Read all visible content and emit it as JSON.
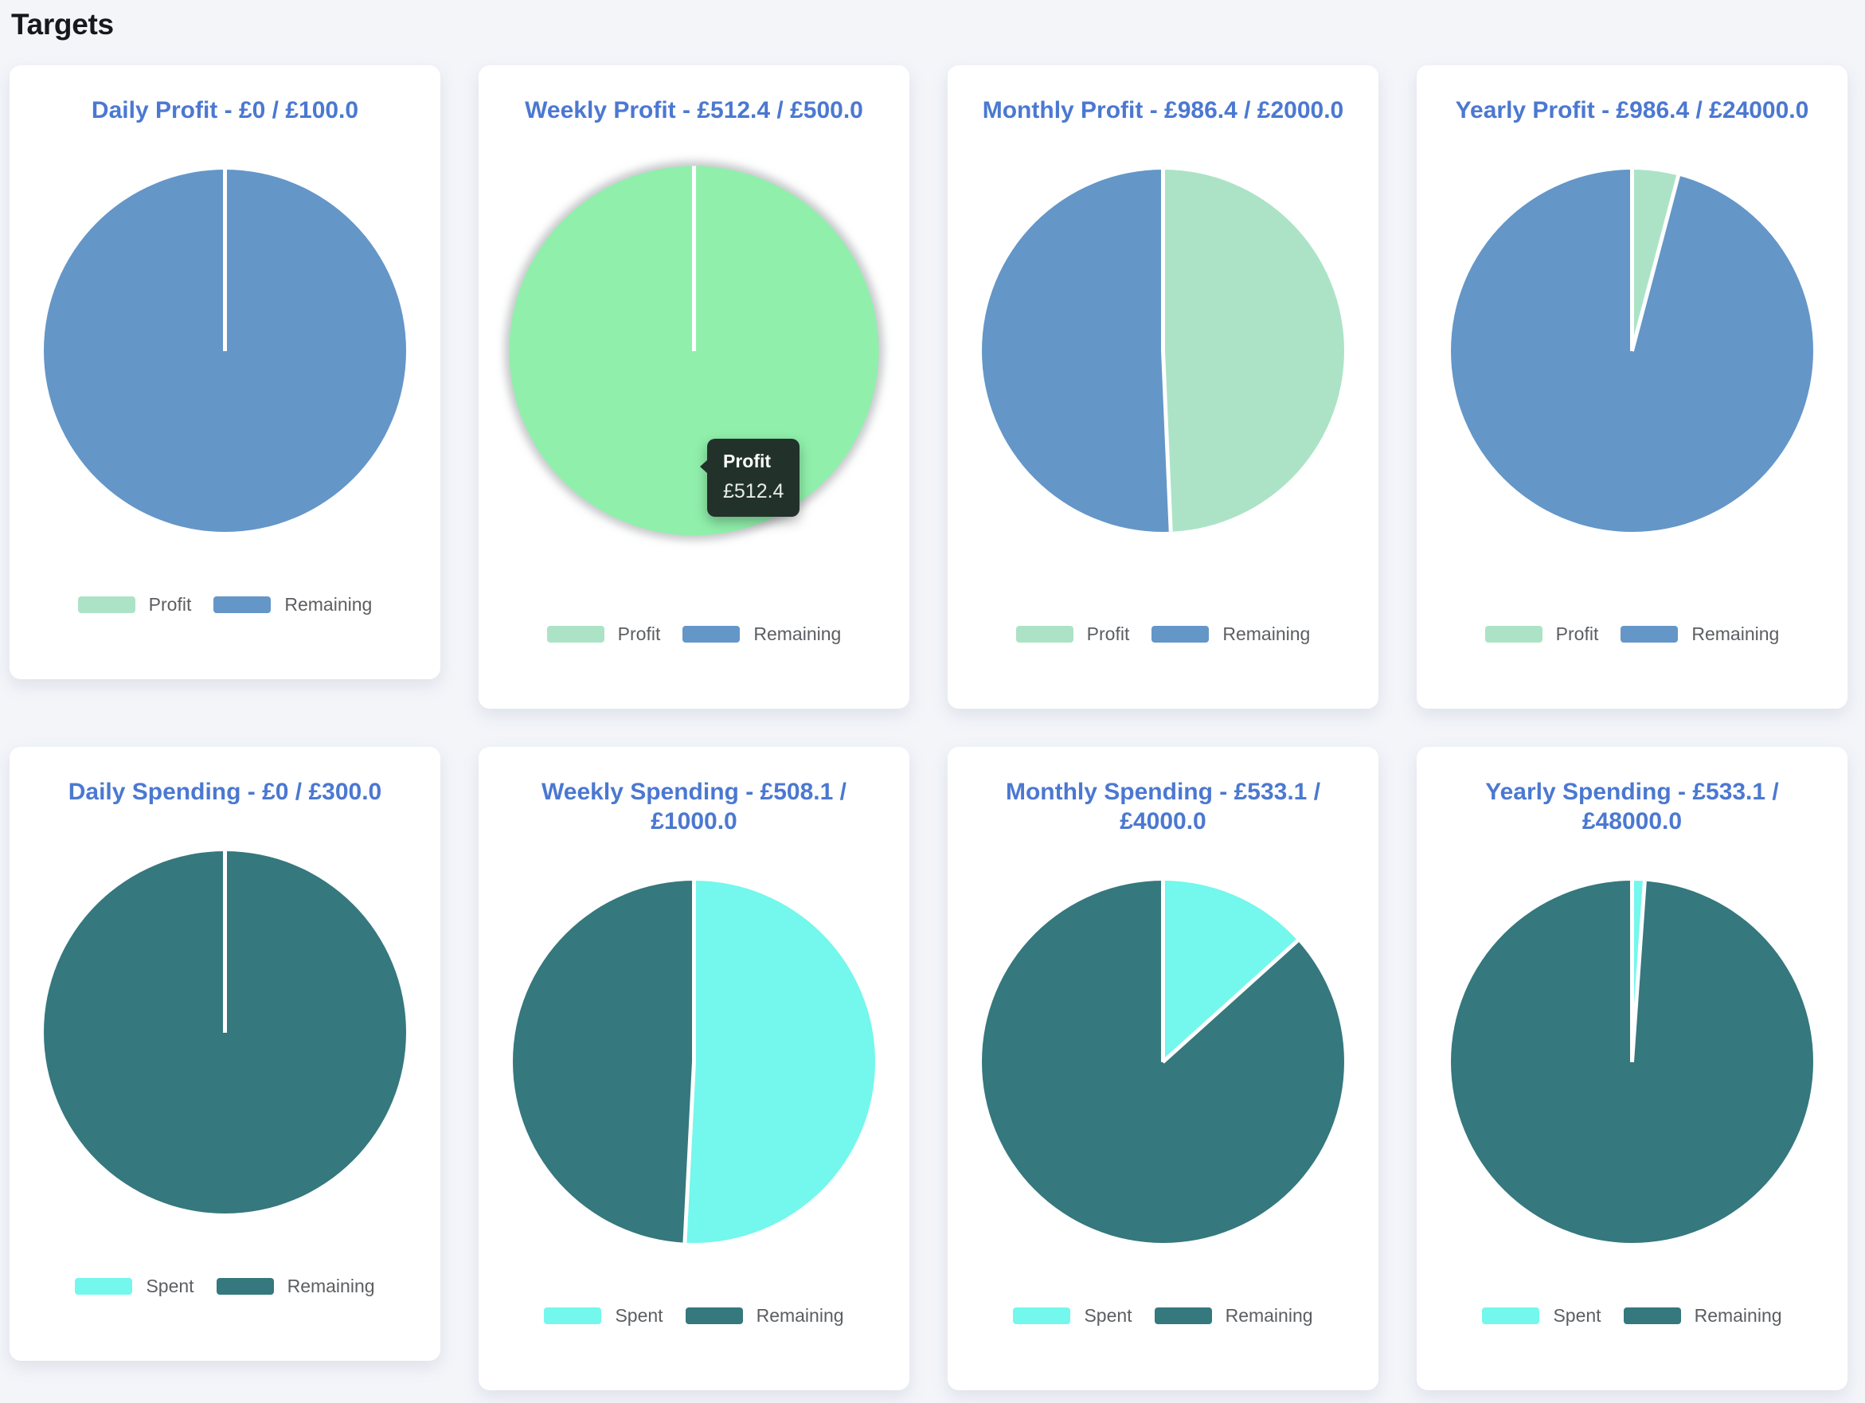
{
  "page": {
    "title": "Targets"
  },
  "theme": {
    "page_bg": "#f3f5f9",
    "card_bg": "#ffffff",
    "card_title_color": "#4b78d1",
    "legend_text_color": "#5c5e61",
    "profit_color": "#ace3c6",
    "profit_highlight_color": "#90f0ab",
    "profit_remaining_color": "#6496c8",
    "spent_color": "#74f7ec",
    "spent_remaining_color": "#35787e",
    "tooltip_bg": "#22322b",
    "tooltip_title_color": "#ffffff",
    "tooltip_value_color": "#e8ebe9"
  },
  "chart_data": [
    {
      "type": "pie",
      "title": "Daily Profit - £0 / £100.0",
      "metric": "Profit",
      "currency": "£",
      "value": 0,
      "target": 100.0,
      "slices": [
        {
          "label": "Profit",
          "value": 0,
          "color": "#ace3c6"
        },
        {
          "label": "Remaining",
          "value": 100.0,
          "color": "#6496c8"
        }
      ],
      "legend": [
        {
          "label": "Profit",
          "color": "#ace3c6"
        },
        {
          "label": "Remaining",
          "color": "#6496c8"
        }
      ],
      "legend_position": "bottom",
      "highlighted": false,
      "tooltip": null
    },
    {
      "type": "pie",
      "title": "Weekly Profit - £512.4 / £500.0",
      "metric": "Profit",
      "currency": "£",
      "value": 512.4,
      "target": 500.0,
      "slices": [
        {
          "label": "Profit",
          "value": 512.4,
          "color": "#90f0ab"
        },
        {
          "label": "Remaining",
          "value": 0,
          "color": "#6496c8"
        }
      ],
      "legend": [
        {
          "label": "Profit",
          "color": "#ace3c6"
        },
        {
          "label": "Remaining",
          "color": "#6496c8"
        }
      ],
      "legend_position": "bottom",
      "highlighted": true,
      "tooltip": {
        "title": "Profit",
        "value": "£512.4"
      }
    },
    {
      "type": "pie",
      "title": "Monthly Profit - £986.4 / £2000.0",
      "metric": "Profit",
      "currency": "£",
      "value": 986.4,
      "target": 2000.0,
      "slices": [
        {
          "label": "Profit",
          "value": 986.4,
          "color": "#ace3c6"
        },
        {
          "label": "Remaining",
          "value": 1013.6,
          "color": "#6496c8"
        }
      ],
      "legend": [
        {
          "label": "Profit",
          "color": "#ace3c6"
        },
        {
          "label": "Remaining",
          "color": "#6496c8"
        }
      ],
      "legend_position": "bottom",
      "highlighted": false,
      "tooltip": null
    },
    {
      "type": "pie",
      "title": "Yearly Profit - £986.4 / £24000.0",
      "metric": "Profit",
      "currency": "£",
      "value": 986.4,
      "target": 24000.0,
      "slices": [
        {
          "label": "Profit",
          "value": 986.4,
          "color": "#ace3c6"
        },
        {
          "label": "Remaining",
          "value": 23013.6,
          "color": "#6496c8"
        }
      ],
      "legend": [
        {
          "label": "Profit",
          "color": "#ace3c6"
        },
        {
          "label": "Remaining",
          "color": "#6496c8"
        }
      ],
      "legend_position": "bottom",
      "highlighted": false,
      "tooltip": null
    },
    {
      "type": "pie",
      "title": "Daily Spending - £0 / £300.0",
      "metric": "Spent",
      "currency": "£",
      "value": 0,
      "target": 300.0,
      "slices": [
        {
          "label": "Spent",
          "value": 0,
          "color": "#74f7ec"
        },
        {
          "label": "Remaining",
          "value": 300.0,
          "color": "#35787e"
        }
      ],
      "legend": [
        {
          "label": "Spent",
          "color": "#74f7ec"
        },
        {
          "label": "Remaining",
          "color": "#35787e"
        }
      ],
      "legend_position": "bottom",
      "highlighted": false,
      "tooltip": null
    },
    {
      "type": "pie",
      "title": "Weekly Spending - £508.1 / £1000.0",
      "metric": "Spent",
      "currency": "£",
      "value": 508.1,
      "target": 1000.0,
      "slices": [
        {
          "label": "Spent",
          "value": 508.1,
          "color": "#74f7ec"
        },
        {
          "label": "Remaining",
          "value": 491.9,
          "color": "#35787e"
        }
      ],
      "legend": [
        {
          "label": "Spent",
          "color": "#74f7ec"
        },
        {
          "label": "Remaining",
          "color": "#35787e"
        }
      ],
      "legend_position": "bottom",
      "highlighted": false,
      "tooltip": null
    },
    {
      "type": "pie",
      "title": "Monthly Spending - £533.1 / £4000.0",
      "metric": "Spent",
      "currency": "£",
      "value": 533.1,
      "target": 4000.0,
      "slices": [
        {
          "label": "Spent",
          "value": 533.1,
          "color": "#74f7ec"
        },
        {
          "label": "Remaining",
          "value": 3466.9,
          "color": "#35787e"
        }
      ],
      "legend": [
        {
          "label": "Spent",
          "color": "#74f7ec"
        },
        {
          "label": "Remaining",
          "color": "#35787e"
        }
      ],
      "legend_position": "bottom",
      "highlighted": false,
      "tooltip": null
    },
    {
      "type": "pie",
      "title": "Yearly Spending - £533.1 / £48000.0",
      "metric": "Spent",
      "currency": "£",
      "value": 533.1,
      "target": 48000.0,
      "slices": [
        {
          "label": "Spent",
          "value": 533.1,
          "color": "#74f7ec"
        },
        {
          "label": "Remaining",
          "value": 47466.9,
          "color": "#35787e"
        }
      ],
      "legend": [
        {
          "label": "Spent",
          "color": "#74f7ec"
        },
        {
          "label": "Remaining",
          "color": "#35787e"
        }
      ],
      "legend_position": "bottom",
      "highlighted": false,
      "tooltip": null
    }
  ]
}
